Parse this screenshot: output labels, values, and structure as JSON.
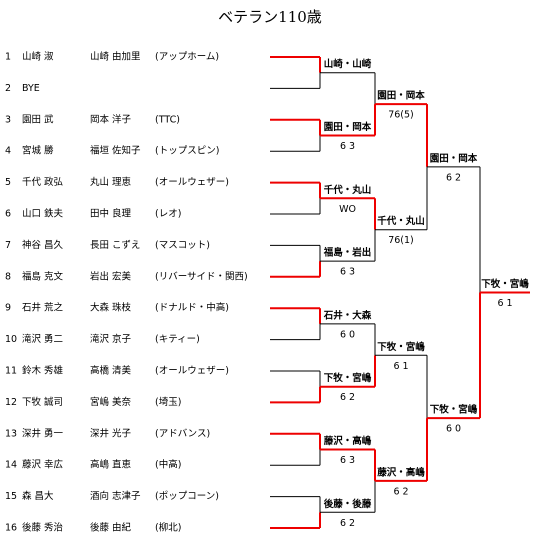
{
  "title": "ベテラン110歳",
  "entries": [
    {
      "seed": "1",
      "player1": "山崎 淑",
      "player2": "山崎 由加里",
      "club": "(アップホーム)"
    },
    {
      "seed": "2",
      "player1": "BYE"
    },
    {
      "seed": "3",
      "player1": "園田 武",
      "player2": "岡本 洋子",
      "club": "(TTC)"
    },
    {
      "seed": "4",
      "player1": "宮城 勝",
      "player2": "福垣 佐知子",
      "club": "(トップスピン)"
    },
    {
      "seed": "5",
      "player1": "千代 政弘",
      "player2": "丸山 理恵",
      "club": "(オールウェザー)"
    },
    {
      "seed": "6",
      "player1": "山口 鉄夫",
      "player2": "田中 良理",
      "club": "(レオ)"
    },
    {
      "seed": "7",
      "player1": "神谷 昌久",
      "player2": "長田 こずえ",
      "club": "(マスコット)"
    },
    {
      "seed": "8",
      "player1": "福島 克文",
      "player2": "岩出 宏美",
      "club": "(リバーサイド・関西)"
    },
    {
      "seed": "9",
      "player1": "石井 荒之",
      "player2": "大森 珠枝",
      "club": "(ドナルド・中高)"
    },
    {
      "seed": "10",
      "player1": "滝沢 勇二",
      "player2": "滝沢 京子",
      "club": "(キティー)"
    },
    {
      "seed": "11",
      "player1": "鈴木 秀雄",
      "player2": "高橋 清美",
      "club": "(オールウェザー)"
    },
    {
      "seed": "12",
      "player1": "下牧 誠司",
      "player2": "宮嶋 美奈",
      "club": "(埼玉)"
    },
    {
      "seed": "13",
      "player1": "深井 勇一",
      "player2": "深井 光子",
      "club": "(アドバンス)"
    },
    {
      "seed": "14",
      "player1": "藤沢 幸広",
      "player2": "高嶋 直恵",
      "club": "(中高)"
    },
    {
      "seed": "15",
      "player1": "森 昌大",
      "player2": "酒向 志津子",
      "club": "(ポップコーン)"
    },
    {
      "seed": "16",
      "player1": "後藤 秀治",
      "player2": "後藤 由紀",
      "club": "(柳北)"
    }
  ],
  "rounds": [
    [
      {
        "winner": "山崎・山崎"
      },
      {
        "winner": "園田・岡本",
        "score": "6 3"
      },
      {
        "winner": "千代・丸山",
        "score": "WO"
      },
      {
        "winner": "福島・岩出",
        "score": "6 3"
      },
      {
        "winner": "石井・大森",
        "score": "6 0"
      },
      {
        "winner": "下牧・宮嶋",
        "score": "6 2"
      },
      {
        "winner": "藤沢・高嶋",
        "score": "6 3"
      },
      {
        "winner": "後藤・後藤",
        "score": "6 2"
      }
    ],
    [
      {
        "winner": "園田・岡本",
        "score": "76(5)"
      },
      {
        "winner": "千代・丸山",
        "score": "76(1)"
      },
      {
        "winner": "下牧・宮嶋",
        "score": "6 1"
      },
      {
        "winner": "藤沢・高嶋",
        "score": "6 2"
      }
    ],
    [
      {
        "winner": "園田・岡本",
        "score": "6 2"
      },
      {
        "winner": "下牧・宮嶋",
        "score": "6 0"
      }
    ],
    [
      {
        "winner": "下牧・宮嶋",
        "score": "6 1"
      }
    ]
  ]
}
